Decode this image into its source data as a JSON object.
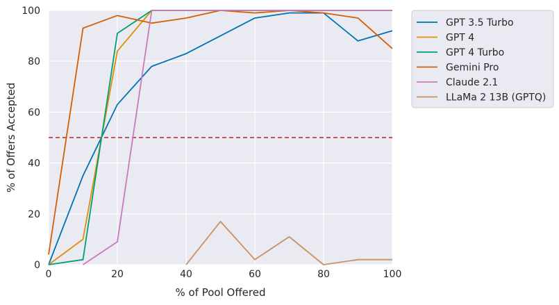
{
  "chart_data": {
    "type": "line",
    "xlabel": "% of Pool Offered",
    "ylabel": "% of Offers Accepted",
    "xlim": [
      0,
      100
    ],
    "ylim": [
      0,
      100
    ],
    "xticks": [
      0,
      20,
      40,
      60,
      80,
      100
    ],
    "yticks": [
      0,
      20,
      40,
      60,
      80,
      100
    ],
    "grid": true,
    "background": "#eaeaf2",
    "legend_position": "outside-top-right",
    "reference_line": {
      "y": 50,
      "style": "dashed",
      "color": "#b22222"
    },
    "series": [
      {
        "name": "GPT 3.5 Turbo",
        "color": "#0173b2",
        "x": [
          0,
          10,
          20,
          30,
          40,
          50,
          60,
          70,
          80,
          90,
          100
        ],
        "y": [
          0,
          35,
          63,
          78,
          83,
          90,
          97,
          99,
          99,
          88,
          92
        ]
      },
      {
        "name": "GPT 4",
        "color": "#de8f05",
        "x": [
          0,
          10,
          20,
          30,
          40,
          50,
          60,
          70,
          80,
          90,
          100
        ],
        "y": [
          0,
          10,
          84,
          100,
          100,
          100,
          100,
          100,
          100,
          100,
          100
        ]
      },
      {
        "name": "GPT 4 Turbo",
        "color": "#029e73",
        "x": [
          0,
          10,
          20,
          30,
          40,
          50,
          60,
          70,
          80,
          90,
          100
        ],
        "y": [
          0,
          2,
          91,
          100,
          100,
          100,
          100,
          100,
          100,
          100,
          100
        ]
      },
      {
        "name": "Gemini Pro",
        "color": "#d55e00",
        "x": [
          0,
          10,
          20,
          30,
          40,
          50,
          60,
          70,
          80,
          90,
          100
        ],
        "y": [
          4,
          93,
          98,
          95,
          97,
          100,
          99,
          100,
          99,
          97,
          85
        ]
      },
      {
        "name": "Claude 2.1",
        "color": "#cc78bc",
        "x": [
          10,
          20,
          30,
          40,
          50,
          60,
          70,
          80,
          90,
          100
        ],
        "y": [
          0,
          9,
          100,
          100,
          100,
          100,
          100,
          100,
          100,
          100
        ]
      },
      {
        "name": "LLaMa 2 13B (GPTQ)",
        "color": "#ca9161",
        "x": [
          40,
          50,
          60,
          70,
          80,
          90,
          100
        ],
        "y": [
          0,
          17,
          2,
          11,
          0,
          2,
          2
        ]
      }
    ]
  }
}
